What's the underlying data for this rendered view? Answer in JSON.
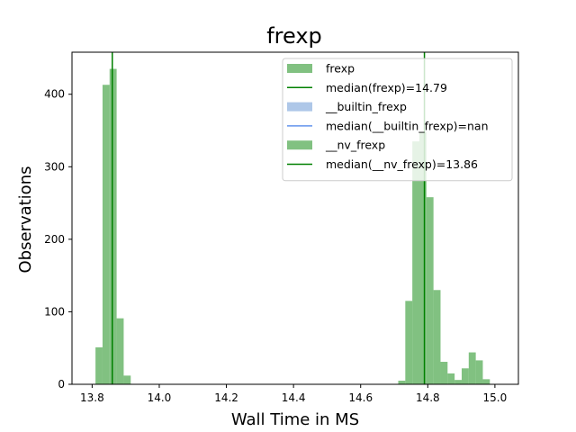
{
  "chart_data": {
    "type": "histogram",
    "title": "frexp",
    "xlabel": "Wall Time in MS",
    "ylabel": "Observations",
    "xlim": [
      13.74,
      15.07
    ],
    "ylim": [
      0,
      458
    ],
    "xticks": [
      13.8,
      14.0,
      14.2,
      14.4,
      14.6,
      14.8,
      15.0
    ],
    "yticks": [
      0,
      100,
      200,
      300,
      400
    ],
    "grid": false,
    "legend_position": "upper right",
    "bin_width": 0.021,
    "series": [
      {
        "name": "frexp",
        "color": "#4ca64c",
        "opacity": 0.7,
        "bins": [
          {
            "x": 14.712,
            "y": 5
          },
          {
            "x": 14.733,
            "y": 115
          },
          {
            "x": 14.754,
            "y": 335
          },
          {
            "x": 14.775,
            "y": 348
          },
          {
            "x": 14.796,
            "y": 258
          },
          {
            "x": 14.817,
            "y": 130
          },
          {
            "x": 14.838,
            "y": 31
          },
          {
            "x": 14.859,
            "y": 15
          },
          {
            "x": 14.88,
            "y": 6
          },
          {
            "x": 14.901,
            "y": 22
          },
          {
            "x": 14.922,
            "y": 44
          },
          {
            "x": 14.943,
            "y": 33
          },
          {
            "x": 14.964,
            "y": 7
          }
        ]
      },
      {
        "name": "__builtin_frexp",
        "color": "#aec7e8",
        "opacity": 1.0,
        "bins": []
      },
      {
        "name": "__nv_frexp",
        "color": "#4ca64c",
        "opacity": 0.7,
        "bins": [
          {
            "x": 13.81,
            "y": 51
          },
          {
            "x": 13.831,
            "y": 413
          },
          {
            "x": 13.852,
            "y": 435
          },
          {
            "x": 13.873,
            "y": 91
          },
          {
            "x": 13.894,
            "y": 12
          }
        ]
      }
    ],
    "median_lines": [
      {
        "name": "median(frexp)=14.79",
        "x": 14.79,
        "color": "#008000"
      },
      {
        "name": "median(__builtin_frexp)=nan",
        "x": null,
        "color": "#6495ed"
      },
      {
        "name": "median(__nv_frexp)=13.86",
        "x": 13.86,
        "color": "#008000"
      }
    ],
    "legend": [
      {
        "label": "frexp",
        "kind": "patch",
        "color": "#4ca64c",
        "opacity": 0.7
      },
      {
        "label": "median(frexp)=14.79",
        "kind": "line",
        "color": "#008000"
      },
      {
        "label": "__builtin_frexp",
        "kind": "patch",
        "color": "#aec7e8",
        "opacity": 1.0
      },
      {
        "label": "median(__builtin_frexp)=nan",
        "kind": "line",
        "color": "#6495ed"
      },
      {
        "label": "__nv_frexp",
        "kind": "patch",
        "color": "#4ca64c",
        "opacity": 0.7
      },
      {
        "label": "median(__nv_frexp)=13.86",
        "kind": "line",
        "color": "#008000"
      }
    ]
  }
}
